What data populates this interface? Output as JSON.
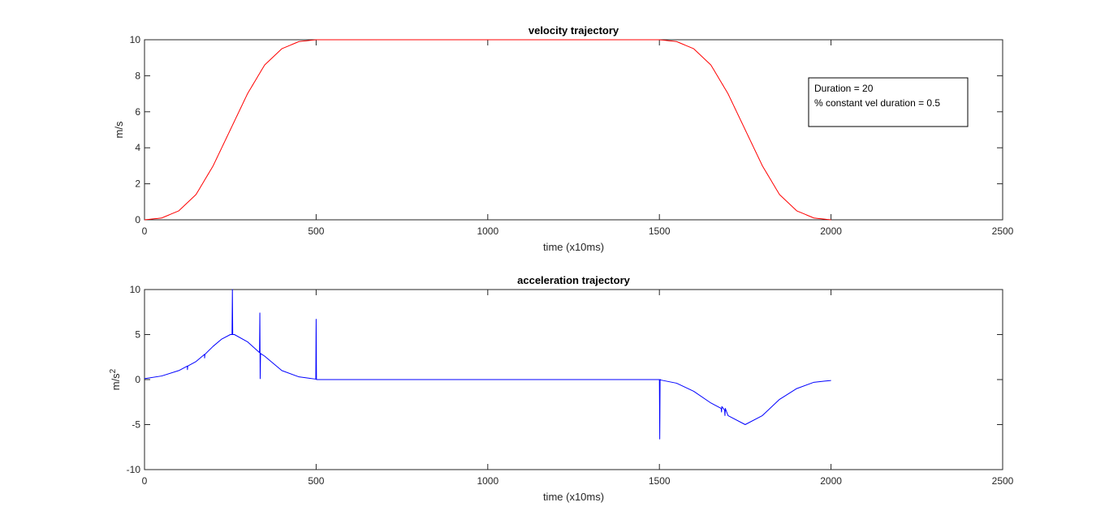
{
  "chart_data": [
    {
      "type": "line",
      "title": "velocity trajectory",
      "xlabel": "time (x10ms)",
      "ylabel": "m/s",
      "xlim": [
        0,
        2500
      ],
      "ylim": [
        0,
        10
      ],
      "xticks": [
        "0",
        "500",
        "1000",
        "1500",
        "2000",
        "2500"
      ],
      "yticks": [
        "0",
        "2",
        "4",
        "6",
        "8",
        "10"
      ],
      "grid": false,
      "series": [
        {
          "color": "#ff0000",
          "x": [
            0,
            50,
            100,
            150,
            200,
            250,
            300,
            350,
            400,
            450,
            500,
            1500,
            1550,
            1600,
            1650,
            1700,
            1750,
            1800,
            1850,
            1900,
            1950,
            2000
          ],
          "y": [
            0.0,
            0.1,
            0.5,
            1.4,
            3.0,
            5.0,
            7.0,
            8.6,
            9.5,
            9.9,
            10.0,
            10.0,
            9.9,
            9.5,
            8.6,
            7.0,
            5.0,
            3.0,
            1.4,
            0.5,
            0.1,
            0.0
          ]
        }
      ],
      "annotation": {
        "lines": [
          "Duration = 20",
          "% constant vel duration = 0.5"
        ]
      }
    },
    {
      "type": "line",
      "title": "acceleration trajectory",
      "xlabel": "time (x10ms)",
      "ylabel_main": "m/s",
      "ylabel_sup": "2",
      "xlim": [
        0,
        2500
      ],
      "ylim": [
        -10,
        10
      ],
      "xticks": [
        "0",
        "500",
        "1000",
        "1500",
        "2000",
        "2500"
      ],
      "yticks": [
        "-10",
        "-5",
        "0",
        "5",
        "10"
      ],
      "grid": false,
      "series": [
        {
          "color": "#0000ff",
          "x": [
            0,
            50,
            100,
            125,
            125,
            126,
            150,
            175,
            175,
            176,
            200,
            225,
            250,
            255,
            256,
            257,
            262,
            300,
            335,
            336,
            337,
            338,
            350,
            400,
            450,
            499,
            500,
            501,
            502,
            503,
            1500,
            1501,
            1502,
            1503,
            1504,
            1550,
            1600,
            1650,
            1680,
            1681,
            1682,
            1690,
            1691,
            1692,
            1700,
            1750,
            1800,
            1850,
            1900,
            1950,
            2000
          ],
          "y": [
            0.1,
            0.4,
            1.0,
            1.5,
            1.1,
            1.5,
            2.0,
            2.8,
            2.4,
            2.8,
            3.7,
            4.5,
            5.0,
            5.0,
            10.0,
            5.0,
            5.0,
            4.2,
            3.0,
            7.4,
            0.1,
            2.9,
            2.6,
            1.0,
            0.3,
            0.05,
            6.7,
            0.0,
            0.0,
            0.0,
            0.0,
            -6.6,
            0.0,
            0.0,
            -0.05,
            -0.4,
            -1.3,
            -2.6,
            -3.2,
            -3.6,
            -3.0,
            -3.4,
            -4.0,
            -3.2,
            -4.0,
            -5.0,
            -4.0,
            -2.2,
            -1.0,
            -0.3,
            -0.1
          ]
        }
      ]
    }
  ]
}
